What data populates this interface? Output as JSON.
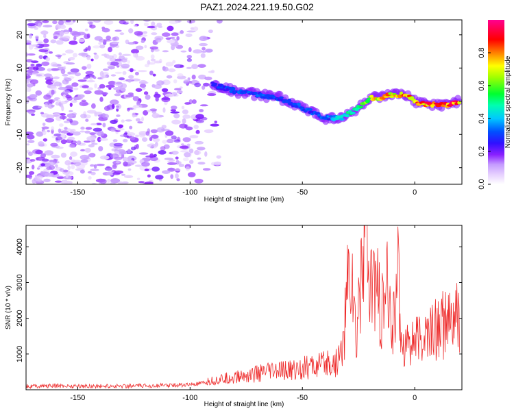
{
  "title": "PAZ1.2024.221.19.50.G02",
  "chart_data": [
    {
      "type": "heatmap",
      "title": "PAZ1.2024.221.19.50.G02",
      "xlabel": "Height of straight line (km)",
      "ylabel": "Frequency (Hz)",
      "xlim": [
        -173,
        21
      ],
      "ylim": [
        -25,
        24.5
      ],
      "xticks": [
        -150,
        -100,
        -50,
        0
      ],
      "xtick_labels": [
        "-150",
        "-100",
        "-50",
        "0"
      ],
      "yticks": [
        20,
        10,
        0,
        -10,
        -20
      ],
      "ytick_labels": [
        "20",
        "10",
        "0",
        "-10",
        "-20"
      ],
      "colorbar": {
        "label": "Normalized spectral amplitude",
        "range": [
          0,
          1
        ],
        "ticks": [
          0.0,
          0.2,
          0.4,
          0.6,
          0.8
        ],
        "tick_labels": [
          "0.0",
          "0.2",
          "0.4",
          "0.6",
          "0.8"
        ],
        "colormap": [
          "#ffffff",
          "#d6b8ff",
          "#7a00ff",
          "#0000ff",
          "#00e6ff",
          "#00ff40",
          "#ffff00",
          "#ff0000",
          "#ff00a0"
        ]
      },
      "ridge": {
        "description_free": true,
        "x": [
          -90,
          -80,
          -70,
          -60,
          -50,
          -40,
          -32,
          -25,
          -20,
          -15,
          -10,
          -5,
          0,
          5,
          10,
          15,
          20
        ],
        "frequency": [
          5,
          3,
          2,
          1,
          -2,
          -5,
          -5,
          -2,
          1,
          1,
          2,
          2,
          0,
          -1,
          -1,
          -1,
          0
        ],
        "amplitude": [
          0.3,
          0.35,
          0.35,
          0.35,
          0.35,
          0.35,
          0.5,
          0.6,
          0.75,
          0.85,
          0.85,
          0.9,
          0.95,
          0.95,
          0.98,
          0.98,
          0.98
        ]
      },
      "noise_extent_x": [
        -173,
        -85
      ]
    },
    {
      "type": "line",
      "xlabel": "Height of straight line (km)",
      "ylabel": "SNR (10 * v/v)",
      "xlim": [
        -173,
        21
      ],
      "ylim": [
        0,
        4600
      ],
      "xticks": [
        -150,
        -100,
        -50,
        0
      ],
      "xtick_labels": [
        "-150",
        "-100",
        "-50",
        "0"
      ],
      "yticks": [
        1000,
        2000,
        3000,
        4000
      ],
      "ytick_labels": [
        "1000",
        "2000",
        "3000",
        "4000"
      ],
      "line_color": "#ee2c2c",
      "x": [
        -173,
        -160,
        -140,
        -120,
        -100,
        -95,
        -90,
        -85,
        -80,
        -75,
        -70,
        -65,
        -60,
        -55,
        -50,
        -45,
        -40,
        -35,
        -32,
        -30,
        -28,
        -26,
        -24,
        -22,
        -20,
        -18,
        -15,
        -12,
        -10,
        -8,
        -6,
        -5,
        -3,
        0,
        3,
        5,
        8,
        10,
        15,
        20
      ],
      "y": [
        100,
        110,
        100,
        110,
        140,
        170,
        250,
        300,
        350,
        400,
        450,
        500,
        520,
        550,
        600,
        650,
        700,
        750,
        1200,
        2800,
        3500,
        1000,
        3800,
        4500,
        2500,
        3200,
        2000,
        2800,
        1500,
        3500,
        1800,
        1200,
        1500,
        1300,
        1400,
        1500,
        1650,
        1750,
        1850,
        2000
      ]
    }
  ]
}
